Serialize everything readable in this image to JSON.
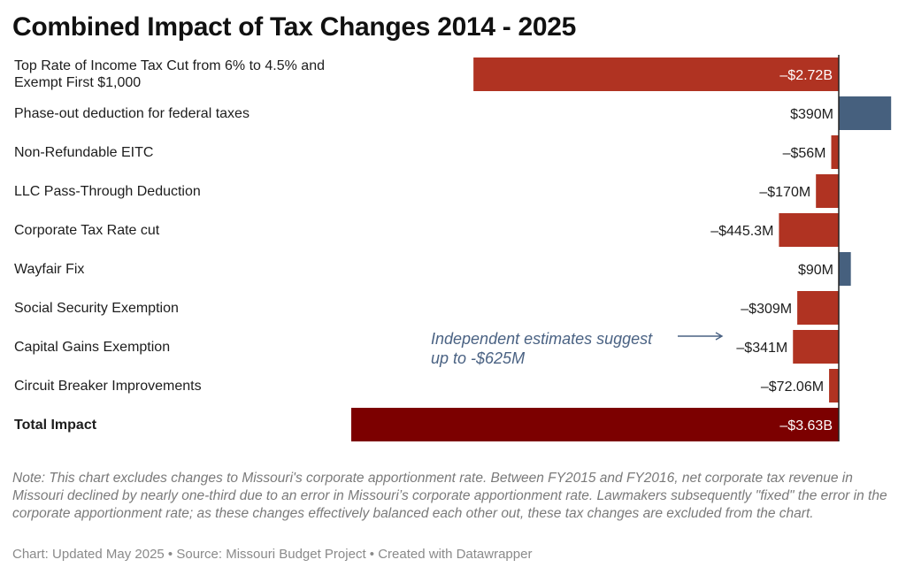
{
  "title": "Combined Impact of Tax Changes 2014 - 2025",
  "colors": {
    "negative": "#b03322",
    "positive": "#46607e",
    "total": "#7c0000",
    "annotation": "#4a6283"
  },
  "chart_data": {
    "type": "bar",
    "orientation": "horizontal",
    "title": "Combined Impact of Tax Changes 2014 - 2025",
    "xlim": [
      -3.63,
      0.39
    ],
    "unit": "billions of dollars",
    "rows": [
      {
        "label": "Top Rate of Income Tax Cut from 6% to 4.5% and Exempt First $1,000",
        "value": -2.72,
        "display": "–$2.72B",
        "color": "negative",
        "bold": false
      },
      {
        "label": "Phase-out deduction for federal taxes",
        "value": 0.39,
        "display": "$390M",
        "color": "positive",
        "bold": false
      },
      {
        "label": "Non-Refundable EITC",
        "value": -0.056,
        "display": "–$56M",
        "color": "negative",
        "bold": false
      },
      {
        "label": "LLC Pass-Through Deduction",
        "value": -0.17,
        "display": "–$170M",
        "color": "negative",
        "bold": false
      },
      {
        "label": "Corporate Tax Rate cut",
        "value": -0.4453,
        "display": "–$445.3M",
        "color": "negative",
        "bold": false
      },
      {
        "label": "Wayfair Fix",
        "value": 0.09,
        "display": "$90M",
        "color": "positive",
        "bold": false
      },
      {
        "label": "Social Security Exemption",
        "value": -0.309,
        "display": "–$309M",
        "color": "negative",
        "bold": false
      },
      {
        "label": "Capital Gains Exemption",
        "value": -0.341,
        "display": "–$341M",
        "color": "negative",
        "bold": false
      },
      {
        "label": "Circuit Breaker Improvements",
        "value": -0.07206,
        "display": "–$72.06M",
        "color": "negative",
        "bold": false
      },
      {
        "label": "Total Impact",
        "value": -3.63,
        "display": "–$3.63B",
        "color": "total",
        "bold": true
      }
    ],
    "annotation": {
      "line1": "Independent estimates suggest",
      "line2": "up to -$625M",
      "row_index": 7
    }
  },
  "footer": {
    "note": "Note: This chart excludes changes to Missouri's corporate apportionment rate. Between FY2015 and FY2016, net corporate tax revenue in Missouri declined by nearly one-third due to an error in Missouri’s corporate apportionment rate. Lawmakers subsequently \"fixed\" the error in the corporate apportionment rate; as these changes effectively balanced each other out, these tax changes are excluded from the chart.",
    "credit": "Chart: Updated May 2025 • Source: Missouri Budget Project • Created with Datawrapper"
  }
}
